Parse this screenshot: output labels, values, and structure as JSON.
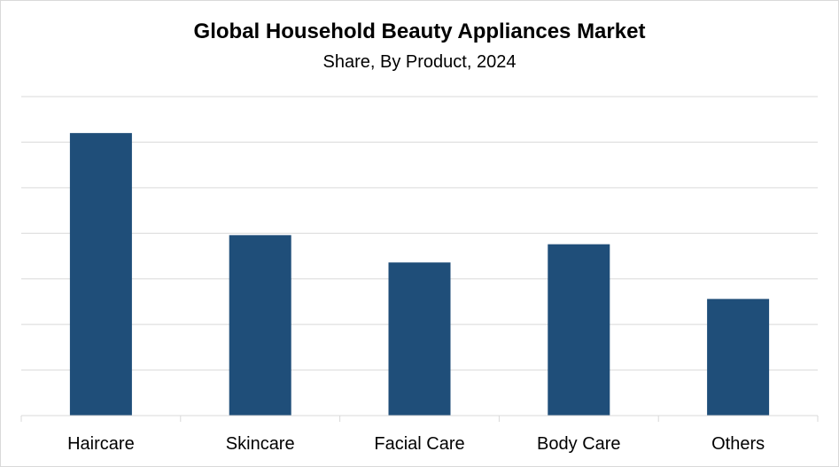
{
  "chart_data": {
    "type": "bar",
    "title": "Global Household Beauty Appliances Market",
    "subtitle": "Share, By Product, 2024",
    "categories": [
      "Haircare",
      "Skincare",
      "Facial Care",
      "Body Care",
      "Others"
    ],
    "values": [
      31,
      19.8,
      16.8,
      18.8,
      12.8
    ],
    "ylim": [
      0,
      35
    ],
    "grid": true,
    "bar_color": "#1f4e79",
    "grid_color": "#d9d9d9"
  }
}
